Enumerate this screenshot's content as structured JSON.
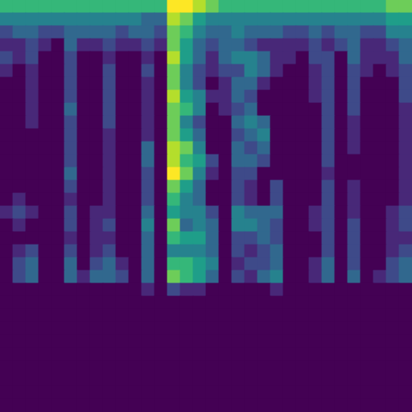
{
  "chart_data": {
    "type": "heatmap",
    "xlim": [
      0,
      32
    ],
    "ylim": [
      0,
      32
    ],
    "zlim": [
      0,
      9
    ],
    "grid": false,
    "tick_labels": false,
    "cells": [
      [
        6,
        6,
        6,
        6,
        6,
        6,
        6,
        6,
        6,
        6,
        6,
        6,
        6,
        9,
        9,
        8,
        7,
        6,
        6,
        6,
        6,
        6,
        6,
        6,
        6,
        6,
        6,
        6,
        6,
        6,
        7,
        7
      ],
      [
        4,
        4,
        4,
        4,
        4,
        4,
        4,
        4,
        4,
        4,
        4,
        3,
        3,
        8,
        7,
        5,
        4,
        4,
        4,
        4,
        4,
        4,
        4,
        4,
        4,
        4,
        4,
        4,
        4,
        4,
        5,
        5
      ],
      [
        2,
        3,
        3,
        2,
        2,
        3,
        3,
        3,
        3,
        2,
        3,
        3,
        2,
        7,
        6,
        4,
        3,
        3,
        4,
        3,
        3,
        3,
        2,
        2,
        3,
        2,
        3,
        3,
        2,
        2,
        4,
        4
      ],
      [
        1,
        1,
        2,
        1,
        0,
        3,
        1,
        1,
        2,
        1,
        1,
        2,
        1,
        7,
        5,
        3,
        2,
        3,
        3,
        2,
        1,
        1,
        1,
        1,
        2,
        1,
        2,
        3,
        1,
        1,
        2,
        3
      ],
      [
        2,
        1,
        2,
        0,
        0,
        2,
        0,
        0,
        1,
        0,
        0,
        1,
        0,
        8,
        5,
        3,
        1,
        3,
        4,
        4,
        3,
        1,
        1,
        0,
        2,
        2,
        0,
        3,
        1,
        1,
        1,
        3
      ],
      [
        1,
        0,
        1,
        0,
        0,
        2,
        0,
        0,
        2,
        0,
        0,
        2,
        0,
        7,
        4,
        2,
        1,
        2,
        2,
        4,
        3,
        1,
        0,
        0,
        1,
        2,
        0,
        2,
        1,
        0,
        1,
        2
      ],
      [
        0,
        0,
        1,
        0,
        0,
        2,
        0,
        0,
        2,
        0,
        0,
        1,
        0,
        7,
        4,
        2,
        0,
        1,
        3,
        3,
        1,
        0,
        0,
        0,
        1,
        2,
        0,
        2,
        0,
        0,
        0,
        2
      ],
      [
        0,
        0,
        1,
        0,
        0,
        2,
        0,
        0,
        2,
        0,
        0,
        1,
        0,
        8,
        5,
        4,
        1,
        1,
        3,
        2,
        0,
        0,
        0,
        0,
        1,
        2,
        0,
        2,
        0,
        0,
        0,
        2
      ],
      [
        0,
        0,
        1,
        0,
        0,
        3,
        0,
        0,
        2,
        0,
        0,
        1,
        0,
        7,
        6,
        4,
        0,
        1,
        2,
        3,
        0,
        0,
        0,
        0,
        0,
        2,
        0,
        2,
        0,
        0,
        0,
        1
      ],
      [
        0,
        0,
        1,
        0,
        0,
        2,
        0,
        0,
        2,
        0,
        0,
        1,
        0,
        7,
        4,
        2,
        0,
        0,
        3,
        4,
        3,
        0,
        0,
        0,
        0,
        2,
        0,
        1,
        0,
        0,
        0,
        1
      ],
      [
        0,
        0,
        0,
        0,
        0,
        2,
        0,
        0,
        1,
        0,
        0,
        1,
        0,
        7,
        5,
        3,
        0,
        0,
        2,
        3,
        4,
        0,
        0,
        0,
        0,
        2,
        0,
        1,
        0,
        0,
        0,
        1
      ],
      [
        0,
        0,
        0,
        0,
        0,
        2,
        0,
        0,
        1,
        0,
        0,
        3,
        0,
        8,
        7,
        4,
        0,
        0,
        3,
        2,
        3,
        0,
        0,
        0,
        0,
        2,
        0,
        1,
        0,
        0,
        0,
        1
      ],
      [
        0,
        0,
        0,
        0,
        0,
        2,
        0,
        0,
        1,
        0,
        0,
        3,
        0,
        8,
        6,
        5,
        2,
        0,
        3,
        3,
        2,
        0,
        0,
        0,
        0,
        2,
        0,
        0,
        0,
        0,
        0,
        1
      ],
      [
        0,
        0,
        0,
        0,
        0,
        3,
        0,
        0,
        1,
        0,
        0,
        2,
        0,
        9,
        7,
        4,
        1,
        0,
        2,
        2,
        0,
        0,
        0,
        0,
        0,
        1,
        0,
        0,
        0,
        0,
        0,
        1
      ],
      [
        0,
        0,
        0,
        0,
        0,
        2,
        0,
        0,
        1,
        0,
        0,
        2,
        0,
        7,
        5,
        3,
        0,
        0,
        2,
        1,
        0,
        2,
        0,
        0,
        0,
        2,
        0,
        1,
        0,
        0,
        0,
        1
      ],
      [
        0,
        1,
        0,
        0,
        0,
        1,
        0,
        0,
        1,
        0,
        0,
        2,
        0,
        6,
        4,
        3,
        0,
        0,
        2,
        1,
        0,
        2,
        0,
        0,
        0,
        2,
        0,
        1,
        0,
        0,
        0,
        1
      ],
      [
        1,
        2,
        1,
        0,
        0,
        2,
        0,
        1,
        1,
        0,
        0,
        3,
        0,
        5,
        4,
        4,
        2,
        0,
        4,
        3,
        3,
        3,
        0,
        0,
        1,
        2,
        0,
        1,
        0,
        0,
        1,
        2
      ],
      [
        0,
        1,
        0,
        0,
        0,
        2,
        0,
        1,
        2,
        0,
        0,
        4,
        0,
        7,
        3,
        4,
        3,
        0,
        4,
        4,
        3,
        2,
        0,
        0,
        1,
        2,
        0,
        2,
        0,
        0,
        1,
        2
      ],
      [
        0,
        0,
        0,
        0,
        0,
        1,
        0,
        1,
        1,
        0,
        0,
        3,
        0,
        6,
        5,
        5,
        3,
        0,
        2,
        2,
        3,
        2,
        0,
        0,
        0,
        2,
        0,
        2,
        0,
        0,
        1,
        1
      ],
      [
        0,
        1,
        2,
        0,
        0,
        2,
        0,
        1,
        2,
        0,
        0,
        3,
        0,
        4,
        4,
        4,
        3,
        0,
        2,
        1,
        2,
        3,
        0,
        0,
        0,
        2,
        0,
        2,
        0,
        0,
        1,
        2
      ],
      [
        0,
        2,
        3,
        0,
        0,
        3,
        0,
        2,
        3,
        1,
        0,
        3,
        0,
        6,
        6,
        5,
        4,
        0,
        1,
        2,
        2,
        3,
        0,
        0,
        1,
        3,
        0,
        2,
        0,
        0,
        2,
        3
      ],
      [
        0,
        2,
        3,
        0,
        0,
        3,
        1,
        3,
        3,
        2,
        0,
        3,
        0,
        7,
        6,
        5,
        3,
        0,
        2,
        1,
        3,
        4,
        0,
        0,
        1,
        3,
        0,
        3,
        0,
        1,
        2,
        3
      ],
      [
        0,
        0,
        0,
        0,
        0,
        0,
        0,
        0,
        0,
        0,
        0,
        1,
        0,
        2,
        1,
        1,
        0,
        0,
        0,
        0,
        0,
        1,
        0,
        0,
        0,
        0,
        0,
        0,
        0,
        0,
        0,
        0
      ],
      [
        0,
        0,
        0,
        0,
        0,
        0,
        0,
        0,
        0,
        0,
        0,
        0,
        0,
        0,
        0,
        0,
        0,
        0,
        0,
        0,
        0,
        0,
        0,
        0,
        0,
        0,
        0,
        0,
        0,
        0,
        0,
        0
      ],
      [
        0,
        0,
        0,
        0,
        0,
        0,
        0,
        0,
        0,
        0,
        0,
        0,
        0,
        0,
        0,
        0,
        0,
        0,
        0,
        0,
        0,
        0,
        0,
        0,
        0,
        0,
        0,
        0,
        0,
        0,
        0,
        0
      ],
      [
        0,
        0,
        0,
        0,
        0,
        0,
        0,
        0,
        0,
        0,
        0,
        0,
        0,
        0,
        0,
        0,
        0,
        0,
        0,
        0,
        0,
        0,
        0,
        0,
        0,
        0,
        0,
        0,
        0,
        0,
        0,
        0
      ],
      [
        0,
        0,
        0,
        0,
        0,
        0,
        0,
        0,
        0,
        0,
        0,
        0,
        0,
        0,
        0,
        0,
        0,
        0,
        0,
        0,
        0,
        0,
        0,
        0,
        0,
        0,
        0,
        0,
        0,
        0,
        0,
        0
      ],
      [
        0,
        0,
        0,
        0,
        0,
        0,
        0,
        0,
        0,
        0,
        0,
        0,
        0,
        0,
        0,
        0,
        0,
        0,
        0,
        0,
        0,
        0,
        0,
        0,
        0,
        0,
        0,
        0,
        0,
        0,
        0,
        0
      ],
      [
        0,
        0,
        0,
        0,
        0,
        0,
        0,
        0,
        0,
        0,
        0,
        0,
        0,
        0,
        0,
        0,
        0,
        0,
        0,
        0,
        0,
        0,
        0,
        0,
        0,
        0,
        0,
        0,
        0,
        0,
        0,
        0
      ],
      [
        0,
        0,
        0,
        0,
        0,
        0,
        0,
        0,
        0,
        0,
        0,
        0,
        0,
        0,
        0,
        0,
        0,
        0,
        0,
        0,
        0,
        0,
        0,
        0,
        0,
        0,
        0,
        0,
        0,
        0,
        0,
        0
      ],
      [
        0,
        0,
        0,
        0,
        0,
        0,
        0,
        0,
        0,
        0,
        0,
        0,
        0,
        0,
        0,
        0,
        0,
        0,
        0,
        0,
        0,
        0,
        0,
        0,
        0,
        0,
        0,
        0,
        0,
        0,
        0,
        0
      ],
      [
        0,
        0,
        0,
        0,
        0,
        0,
        0,
        0,
        0,
        0,
        0,
        0,
        0,
        0,
        0,
        0,
        0,
        0,
        0,
        0,
        0,
        0,
        0,
        0,
        0,
        0,
        0,
        0,
        0,
        0,
        0,
        0
      ]
    ]
  }
}
